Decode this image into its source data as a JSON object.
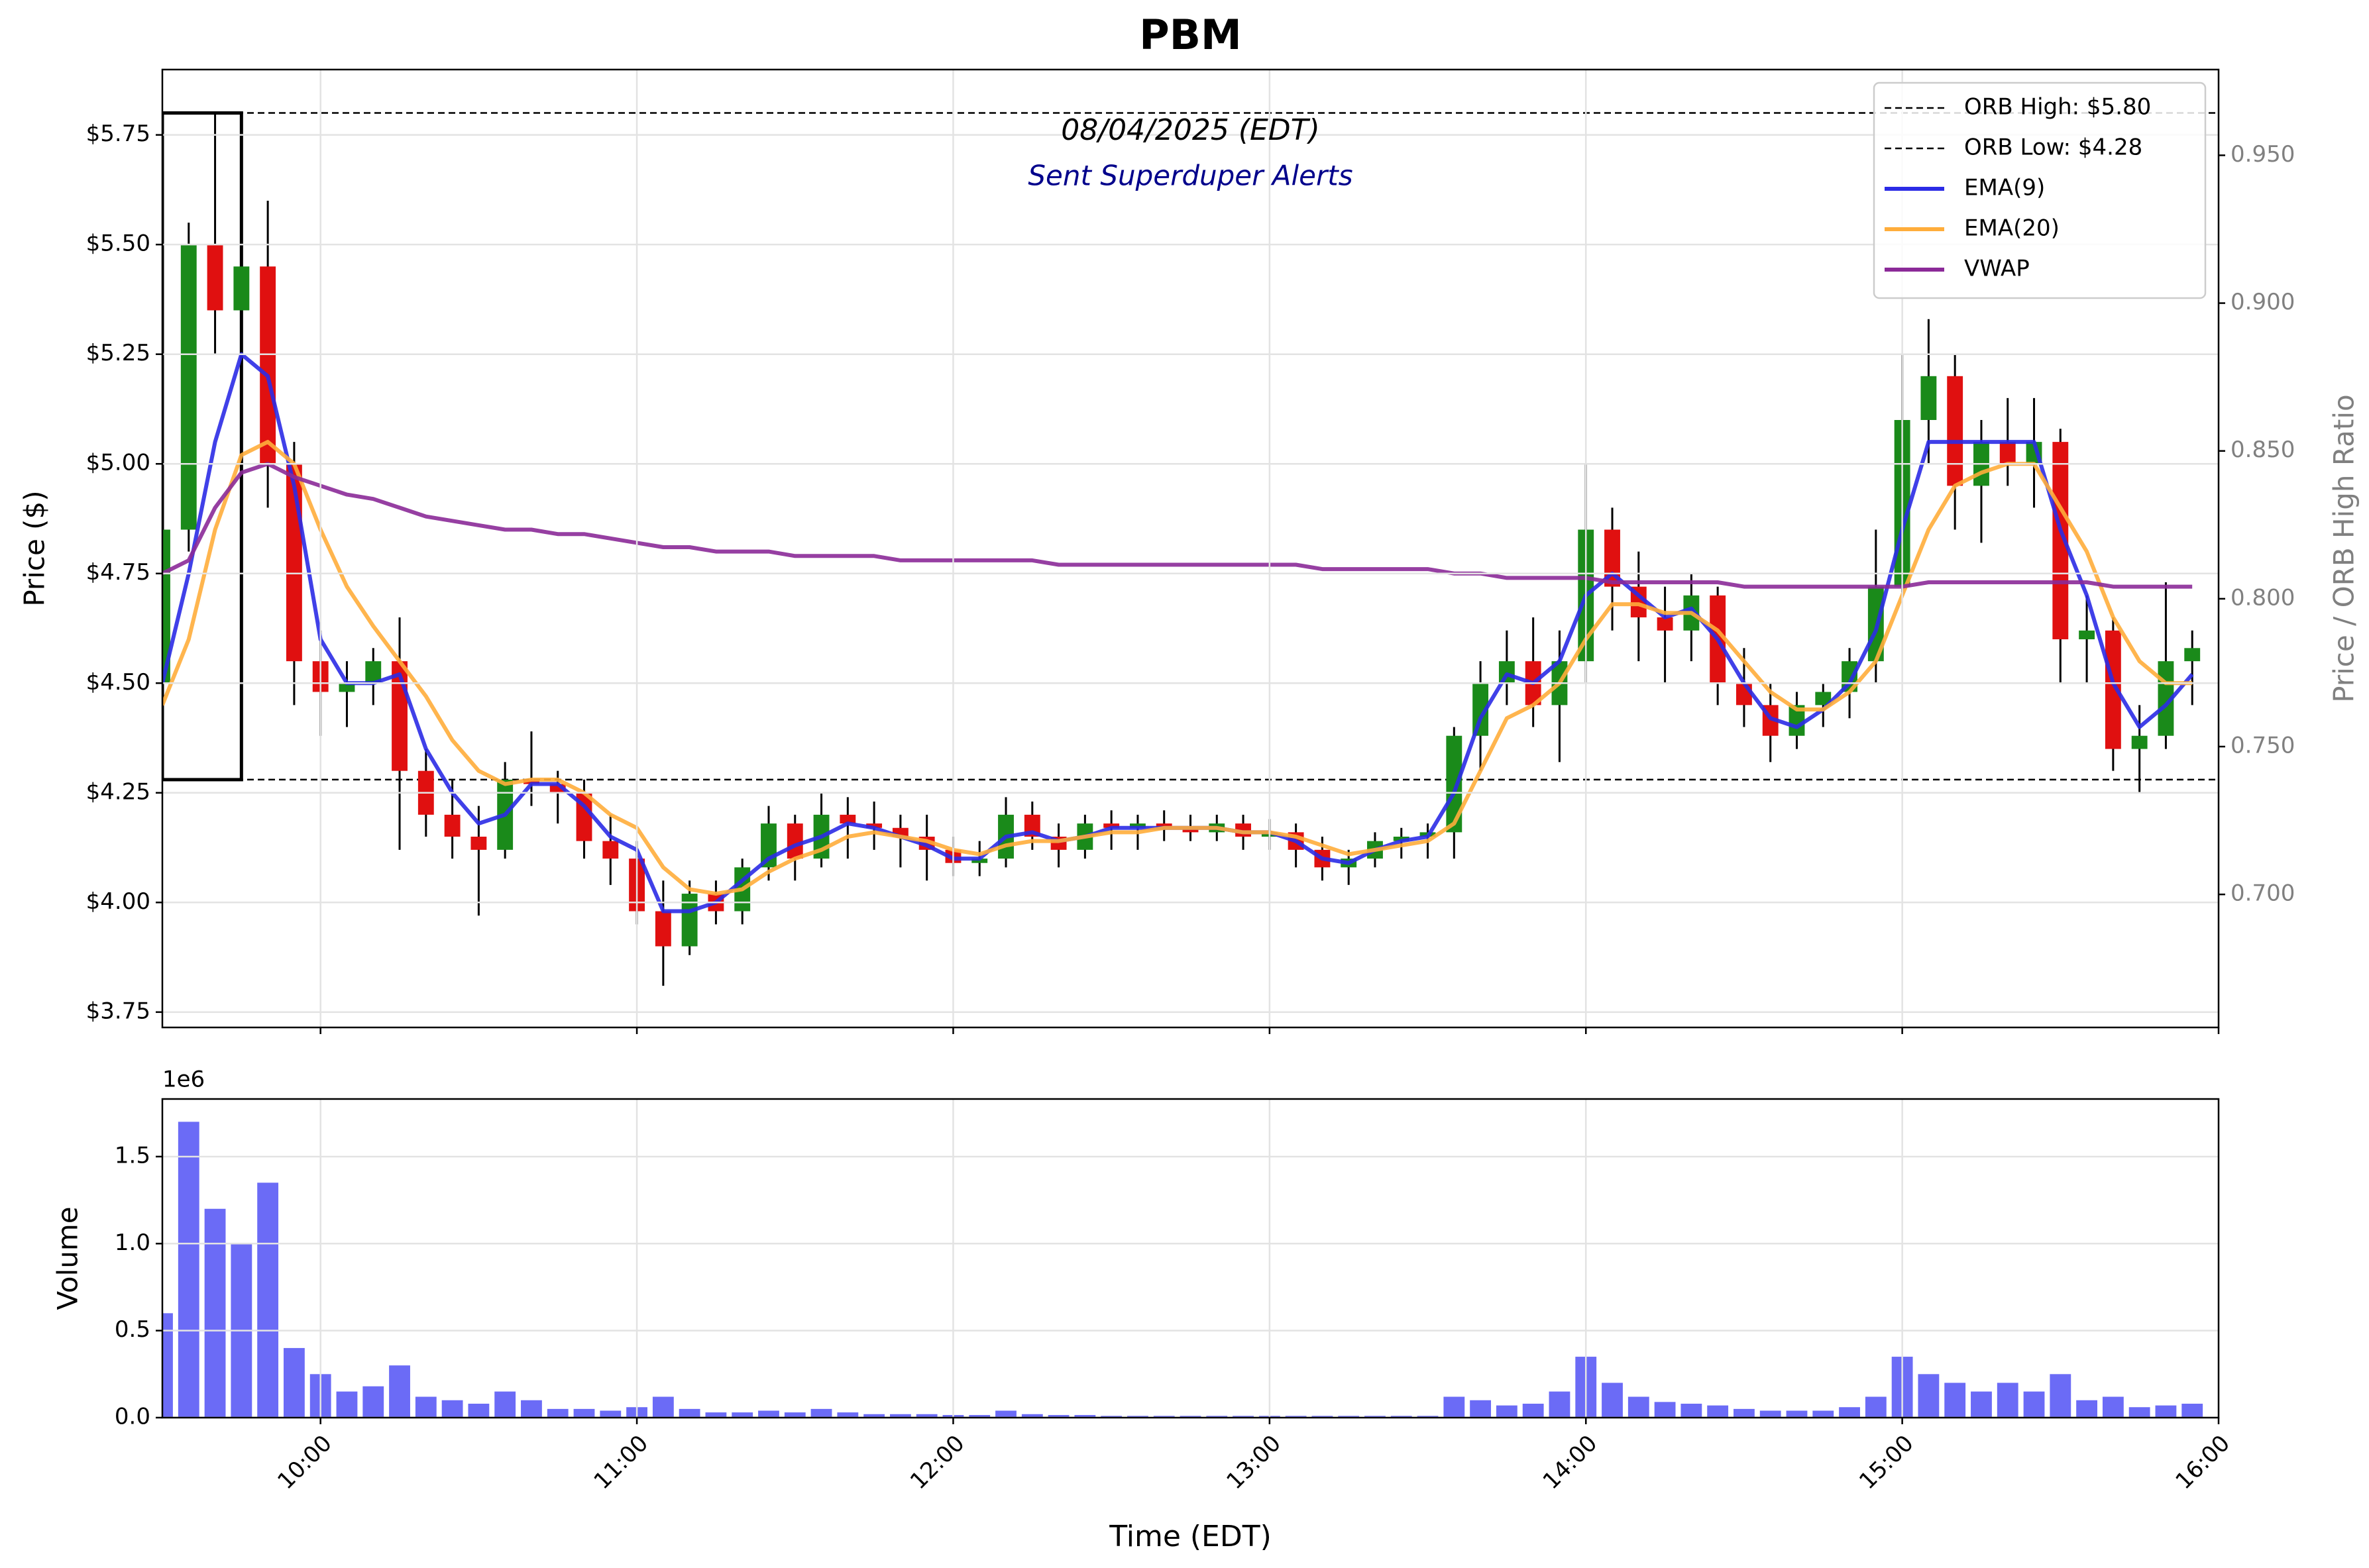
{
  "chart_data": [
    {
      "type": "candlestick",
      "title": "PBM",
      "annotations": [
        "08/04/2025 (EDT)",
        "Sent Superduper Alerts"
      ],
      "ylabel": "Price ($)",
      "y2label": "Price / ORB High Ratio",
      "x": [
        "09:30",
        "09:35",
        "09:40",
        "09:45",
        "09:50",
        "09:55",
        "10:00",
        "10:05",
        "10:10",
        "10:15",
        "10:20",
        "10:25",
        "10:30",
        "10:35",
        "10:40",
        "10:45",
        "10:50",
        "10:55",
        "11:00",
        "11:05",
        "11:10",
        "11:15",
        "11:20",
        "11:25",
        "11:30",
        "11:35",
        "11:40",
        "11:45",
        "11:50",
        "11:55",
        "12:00",
        "12:05",
        "12:10",
        "12:15",
        "12:20",
        "12:25",
        "12:30",
        "12:35",
        "12:40",
        "12:45",
        "12:50",
        "12:55",
        "13:00",
        "13:05",
        "13:10",
        "13:15",
        "13:20",
        "13:25",
        "13:30",
        "13:35",
        "13:40",
        "13:45",
        "13:50",
        "13:55",
        "14:00",
        "14:05",
        "14:10",
        "14:15",
        "14:20",
        "14:25",
        "14:30",
        "14:35",
        "14:40",
        "14:45",
        "14:50",
        "14:55",
        "15:00",
        "15:05",
        "15:10",
        "15:15",
        "15:20",
        "15:25",
        "15:30",
        "15:35",
        "15:40",
        "15:45",
        "15:50",
        "15:55"
      ],
      "xlim": [
        "09:30",
        "16:00"
      ],
      "ylim": [
        3.715,
        5.899
      ],
      "yticks": [
        {
          "value": 3.75,
          "label": "$3.75"
        },
        {
          "value": 4.0,
          "label": "$4.00"
        },
        {
          "value": 4.25,
          "label": "$4.25"
        },
        {
          "value": 4.5,
          "label": "$4.50"
        },
        {
          "value": 4.75,
          "label": "$4.75"
        },
        {
          "value": 5.0,
          "label": "$5.00"
        },
        {
          "value": 5.25,
          "label": "$5.25"
        },
        {
          "value": 5.5,
          "label": "$5.50"
        },
        {
          "value": 5.75,
          "label": "$5.75"
        }
      ],
      "y2lim": [
        0.655,
        0.979
      ],
      "y2ticks": [
        {
          "value": 0.7,
          "label": "0.700"
        },
        {
          "value": 0.75,
          "label": "0.750"
        },
        {
          "value": 0.8,
          "label": "0.800"
        },
        {
          "value": 0.85,
          "label": "0.850"
        },
        {
          "value": 0.9,
          "label": "0.900"
        },
        {
          "value": 0.95,
          "label": "0.950"
        }
      ],
      "open": [
        4.5,
        4.85,
        5.5,
        5.35,
        5.45,
        5.0,
        4.55,
        4.48,
        4.5,
        4.55,
        4.3,
        4.2,
        4.15,
        4.12,
        4.28,
        4.27,
        4.25,
        4.14,
        4.1,
        3.98,
        3.9,
        4.02,
        3.98,
        4.08,
        4.18,
        4.1,
        4.2,
        4.18,
        4.17,
        4.15,
        4.12,
        4.09,
        4.1,
        4.2,
        4.15,
        4.12,
        4.18,
        4.17,
        4.18,
        4.17,
        4.16,
        4.18,
        4.15,
        4.16,
        4.12,
        4.08,
        4.1,
        4.14,
        4.15,
        4.16,
        4.38,
        4.5,
        4.55,
        4.45,
        4.55,
        4.85,
        4.72,
        4.65,
        4.62,
        4.7,
        4.5,
        4.45,
        4.38,
        4.45,
        4.48,
        4.55,
        4.72,
        5.1,
        5.2,
        4.95,
        5.05,
        5.0,
        5.05,
        4.6,
        4.62,
        4.35,
        4.38,
        4.55
      ],
      "high": [
        4.95,
        5.55,
        5.8,
        5.75,
        5.6,
        5.05,
        4.62,
        4.55,
        4.58,
        4.65,
        4.35,
        4.28,
        4.22,
        4.32,
        4.39,
        4.3,
        4.28,
        4.2,
        4.14,
        4.05,
        4.05,
        4.05,
        4.1,
        4.22,
        4.2,
        4.25,
        4.24,
        4.23,
        4.2,
        4.2,
        4.15,
        4.14,
        4.24,
        4.23,
        4.18,
        4.2,
        4.21,
        4.2,
        4.21,
        4.2,
        4.2,
        4.2,
        4.19,
        4.18,
        4.15,
        4.12,
        4.16,
        4.17,
        4.18,
        4.4,
        4.55,
        4.62,
        4.65,
        4.62,
        5.0,
        4.9,
        4.8,
        4.72,
        4.75,
        4.72,
        4.58,
        4.5,
        4.48,
        4.5,
        4.58,
        4.85,
        5.25,
        5.33,
        5.25,
        5.1,
        5.15,
        5.15,
        5.08,
        4.7,
        4.65,
        4.45,
        4.73,
        4.62
      ],
      "low": [
        4.28,
        4.8,
        5.25,
        5.25,
        4.9,
        4.45,
        4.38,
        4.4,
        4.45,
        4.12,
        4.15,
        4.1,
        3.97,
        4.1,
        4.22,
        4.18,
        4.1,
        4.04,
        3.95,
        3.81,
        3.88,
        3.95,
        3.95,
        4.05,
        4.05,
        4.08,
        4.1,
        4.12,
        4.08,
        4.05,
        4.06,
        4.06,
        4.08,
        4.12,
        4.08,
        4.1,
        4.12,
        4.12,
        4.14,
        4.14,
        4.14,
        4.12,
        4.12,
        4.08,
        4.05,
        4.04,
        4.08,
        4.1,
        4.1,
        4.1,
        4.3,
        4.45,
        4.4,
        4.32,
        4.5,
        4.62,
        4.55,
        4.5,
        4.55,
        4.45,
        4.4,
        4.32,
        4.35,
        4.4,
        4.42,
        4.5,
        4.7,
        5.0,
        4.85,
        4.82,
        4.95,
        4.9,
        4.5,
        4.5,
        4.3,
        4.25,
        4.35,
        4.45
      ],
      "close": [
        4.85,
        5.5,
        5.35,
        5.45,
        5.0,
        4.55,
        4.48,
        4.5,
        4.55,
        4.3,
        4.2,
        4.15,
        4.12,
        4.28,
        4.27,
        4.25,
        4.14,
        4.1,
        3.98,
        3.9,
        4.02,
        3.98,
        4.08,
        4.18,
        4.1,
        4.2,
        4.18,
        4.17,
        4.15,
        4.12,
        4.09,
        4.1,
        4.2,
        4.15,
        4.12,
        4.18,
        4.17,
        4.18,
        4.17,
        4.16,
        4.18,
        4.15,
        4.16,
        4.12,
        4.08,
        4.1,
        4.14,
        4.15,
        4.16,
        4.38,
        4.5,
        4.55,
        4.45,
        4.55,
        4.85,
        4.72,
        4.65,
        4.62,
        4.7,
        4.5,
        4.45,
        4.38,
        4.45,
        4.48,
        4.55,
        4.72,
        5.1,
        5.2,
        4.95,
        5.05,
        5.0,
        5.05,
        4.6,
        4.62,
        4.35,
        4.38,
        4.55,
        4.58
      ],
      "up_color": "#1a8a1a",
      "down_color": "#e01010",
      "wick_color": "#000000",
      "hlines": [
        {
          "name": "ORB High: $5.80",
          "value": 5.8
        },
        {
          "name": "ORB Low: $4.28",
          "value": 4.28
        }
      ],
      "orb_window": [
        "09:30",
        "09:45"
      ],
      "series": [
        {
          "name": "EMA(9)",
          "color": "#2b2be6",
          "values": [
            4.5,
            4.75,
            5.05,
            5.25,
            5.2,
            4.95,
            4.6,
            4.5,
            4.5,
            4.52,
            4.35,
            4.25,
            4.18,
            4.2,
            4.27,
            4.27,
            4.22,
            4.15,
            4.12,
            3.98,
            3.98,
            4.0,
            4.05,
            4.1,
            4.13,
            4.15,
            4.18,
            4.17,
            4.15,
            4.13,
            4.1,
            4.1,
            4.15,
            4.16,
            4.14,
            4.15,
            4.17,
            4.17,
            4.17,
            4.17,
            4.17,
            4.16,
            4.16,
            4.14,
            4.1,
            4.09,
            4.12,
            4.14,
            4.15,
            4.25,
            4.42,
            4.52,
            4.5,
            4.55,
            4.7,
            4.75,
            4.7,
            4.65,
            4.67,
            4.6,
            4.5,
            4.42,
            4.4,
            4.44,
            4.5,
            4.62,
            4.85,
            5.05,
            5.05,
            5.05,
            5.05,
            5.05,
            4.85,
            4.7,
            4.5,
            4.4,
            4.45,
            4.52
          ]
        },
        {
          "name": "EMA(20)",
          "color": "#ffad3b",
          "values": [
            4.45,
            4.6,
            4.85,
            5.02,
            5.05,
            5.0,
            4.85,
            4.72,
            4.63,
            4.55,
            4.47,
            4.37,
            4.3,
            4.27,
            4.28,
            4.28,
            4.25,
            4.2,
            4.17,
            4.08,
            4.03,
            4.02,
            4.03,
            4.07,
            4.1,
            4.12,
            4.15,
            4.16,
            4.15,
            4.14,
            4.12,
            4.11,
            4.13,
            4.14,
            4.14,
            4.15,
            4.16,
            4.16,
            4.17,
            4.17,
            4.17,
            4.16,
            4.16,
            4.15,
            4.13,
            4.11,
            4.12,
            4.13,
            4.14,
            4.18,
            4.3,
            4.42,
            4.45,
            4.5,
            4.6,
            4.68,
            4.68,
            4.66,
            4.66,
            4.62,
            4.55,
            4.48,
            4.44,
            4.44,
            4.48,
            4.55,
            4.7,
            4.85,
            4.95,
            4.98,
            5.0,
            5.0,
            4.9,
            4.8,
            4.65,
            4.55,
            4.5,
            4.5
          ]
        },
        {
          "name": "VWAP",
          "color": "#8b2a98",
          "values": [
            4.75,
            4.78,
            4.9,
            4.98,
            5.0,
            4.97,
            4.95,
            4.93,
            4.92,
            4.9,
            4.88,
            4.87,
            4.86,
            4.85,
            4.85,
            4.84,
            4.84,
            4.83,
            4.82,
            4.81,
            4.81,
            4.8,
            4.8,
            4.8,
            4.79,
            4.79,
            4.79,
            4.79,
            4.78,
            4.78,
            4.78,
            4.78,
            4.78,
            4.78,
            4.77,
            4.77,
            4.77,
            4.77,
            4.77,
            4.77,
            4.77,
            4.77,
            4.77,
            4.77,
            4.76,
            4.76,
            4.76,
            4.76,
            4.76,
            4.75,
            4.75,
            4.74,
            4.74,
            4.74,
            4.74,
            4.73,
            4.73,
            4.73,
            4.73,
            4.73,
            4.72,
            4.72,
            4.72,
            4.72,
            4.72,
            4.72,
            4.72,
            4.73,
            4.73,
            4.73,
            4.73,
            4.73,
            4.73,
            4.73,
            4.72,
            4.72,
            4.72,
            4.72
          ]
        }
      ],
      "legend": "upper right",
      "grid": true
    },
    {
      "type": "bar",
      "ylabel": "Volume",
      "xlabel": "Time (EDT)",
      "offset_label": "1e6",
      "color": "#5b5bf5",
      "values": [
        600000,
        1700000,
        1200000,
        1000000,
        1350000,
        400000,
        250000,
        150000,
        180000,
        300000,
        120000,
        100000,
        80000,
        150000,
        100000,
        50000,
        50000,
        40000,
        60000,
        120000,
        50000,
        30000,
        30000,
        40000,
        30000,
        50000,
        30000,
        20000,
        20000,
        20000,
        15000,
        15000,
        40000,
        20000,
        15000,
        15000,
        10000,
        10000,
        10000,
        10000,
        10000,
        10000,
        10000,
        10000,
        10000,
        10000,
        10000,
        10000,
        10000,
        120000,
        100000,
        70000,
        80000,
        150000,
        350000,
        200000,
        120000,
        90000,
        80000,
        70000,
        50000,
        40000,
        40000,
        40000,
        60000,
        120000,
        350000,
        250000,
        200000,
        150000,
        200000,
        150000,
        250000,
        100000,
        120000,
        60000,
        70000,
        80000
      ],
      "ylim": [
        0,
        1831000
      ],
      "yticks": [
        {
          "value": 0,
          "label": "0.0"
        },
        {
          "value": 500000,
          "label": "0.5"
        },
        {
          "value": 1000000,
          "label": "1.0"
        },
        {
          "value": 1500000,
          "label": "1.5"
        }
      ],
      "xticks": [
        "10:00",
        "11:00",
        "12:00",
        "13:00",
        "14:00",
        "15:00",
        "16:00"
      ],
      "grid": true
    }
  ]
}
